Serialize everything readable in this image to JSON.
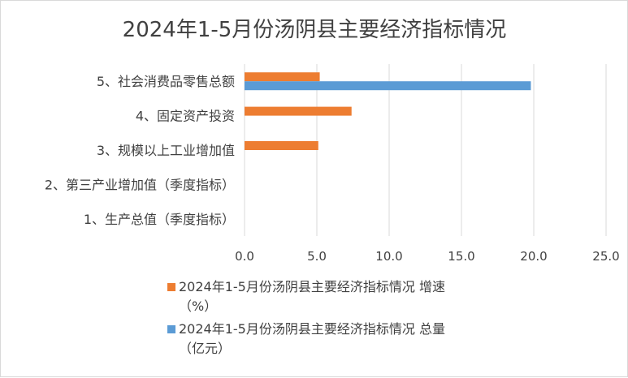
{
  "chart_data": {
    "type": "bar",
    "orientation": "horizontal",
    "title": "2024年1-5月份汤阴县主要经济指标情况",
    "categories": [
      "1、生产总值（季度指标）",
      "2、第三产业增加值（季度指标）",
      "3、规模以上工业增加值",
      "4、固定资产投资",
      "5、社会消费品零售总额"
    ],
    "series": [
      {
        "name": "2024年1-5月份汤阴县主要经济指标情况 增速（%）",
        "legend_line1": "2024年1-5月份汤阴县主要经济指标情况 增速",
        "legend_line2": "（%）",
        "color": "#ed7d31",
        "values": [
          null,
          null,
          5.1,
          7.4,
          5.2
        ]
      },
      {
        "name": "2024年1-5月份汤阴县主要经济指标情况 总量（亿元）",
        "legend_line1": "2024年1-5月份汤阴县主要经济指标情况 总量",
        "legend_line2": "（亿元）",
        "color": "#5b9bd5",
        "values": [
          null,
          null,
          null,
          null,
          19.8
        ]
      }
    ],
    "xlim": [
      0,
      25
    ],
    "xticks": [
      "0.0",
      "5.0",
      "10.0",
      "15.0",
      "20.0",
      "25.0"
    ],
    "xlabel": "",
    "ylabel": "",
    "grid": true,
    "legend_position": "bottom"
  }
}
